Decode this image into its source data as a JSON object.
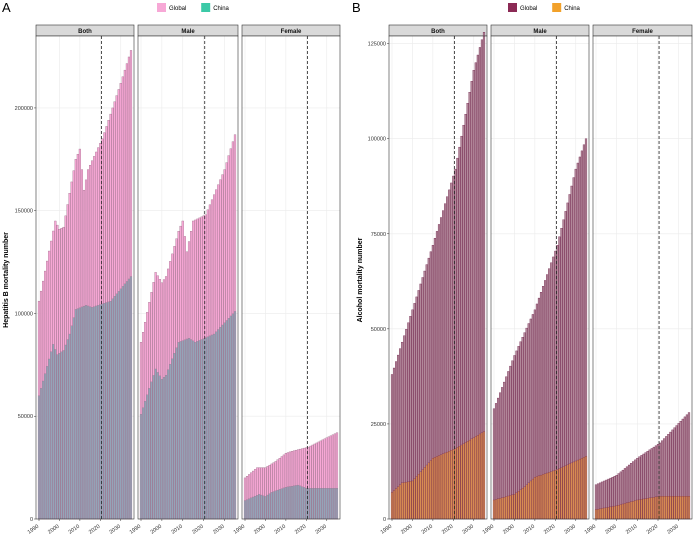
{
  "chart_data": [
    {
      "type": "bar",
      "panel_label": "A",
      "ylabel": "Hepatitis B mortality number",
      "xlabel": "",
      "ylim": [
        0,
        235000
      ],
      "yticks": [
        0,
        50000,
        100000,
        150000,
        200000
      ],
      "ytick_labels": [
        "0",
        "50000",
        "100000",
        "150000",
        "200000"
      ],
      "xticks": [
        1990,
        2000,
        2010,
        2020,
        2030
      ],
      "xtick_labels": [
        "1990",
        "2000",
        "2010",
        "2020",
        "2030"
      ],
      "x_range": [
        1990,
        2035
      ],
      "projection_start": 2021,
      "legend": {
        "position": "top",
        "entries": [
          {
            "label": "Global",
            "color": "#f7a8d6"
          },
          {
            "label": "China",
            "color": "#3cc9a7"
          }
        ]
      },
      "series_colors": {
        "Global": "#f7a8d6",
        "China": "#8fa3b6"
      },
      "bar_edge_color": "#9b6a86",
      "facets": [
        {
          "strip": "Both",
          "global_keypoints": [
            [
              1990,
              106000
            ],
            [
              1998,
              145000
            ],
            [
              2000,
              141000
            ],
            [
              2002,
              142000
            ],
            [
              2008,
              175000
            ],
            [
              2010,
              180000
            ],
            [
              2012,
              160000
            ],
            [
              2014,
              170000
            ],
            [
              2021,
              185000
            ],
            [
              2030,
              212000
            ],
            [
              2035,
              228000
            ]
          ],
          "china_keypoints": [
            [
              1990,
              60000
            ],
            [
              1997,
              85000
            ],
            [
              1999,
              80000
            ],
            [
              2002,
              82000
            ],
            [
              2005,
              90000
            ],
            [
              2008,
              102000
            ],
            [
              2013,
              104000
            ],
            [
              2016,
              103000
            ],
            [
              2025,
              106000
            ],
            [
              2035,
              118000
            ]
          ]
        },
        {
          "strip": "Male",
          "global_keypoints": [
            [
              1990,
              86000
            ],
            [
              1997,
              120000
            ],
            [
              2000,
              115000
            ],
            [
              2002,
              118000
            ],
            [
              2008,
              140000
            ],
            [
              2010,
              145000
            ],
            [
              2012,
              130000
            ],
            [
              2015,
              145000
            ],
            [
              2021,
              148000
            ],
            [
              2030,
              170000
            ],
            [
              2035,
              187000
            ]
          ],
          "china_keypoints": [
            [
              1990,
              51000
            ],
            [
              1997,
              73000
            ],
            [
              2000,
              68000
            ],
            [
              2002,
              70000
            ],
            [
              2005,
              78000
            ],
            [
              2008,
              86000
            ],
            [
              2013,
              88000
            ],
            [
              2016,
              86000
            ],
            [
              2025,
              90000
            ],
            [
              2035,
              101000
            ]
          ]
        },
        {
          "strip": "Female",
          "global_keypoints": [
            [
              1990,
              20000
            ],
            [
              1996,
              25000
            ],
            [
              2000,
              25000
            ],
            [
              2005,
              28000
            ],
            [
              2010,
              32000
            ],
            [
              2013,
              33000
            ],
            [
              2021,
              35000
            ],
            [
              2035,
              42000
            ]
          ],
          "china_keypoints": [
            [
              1990,
              9000
            ],
            [
              1997,
              12000
            ],
            [
              2000,
              11000
            ],
            [
              2003,
              13000
            ],
            [
              2010,
              15500
            ],
            [
              2016,
              16500
            ],
            [
              2020,
              15000
            ],
            [
              2035,
              15000
            ]
          ]
        }
      ]
    },
    {
      "type": "bar",
      "panel_label": "B",
      "ylabel": "Alcohol mortality number",
      "xlabel": "",
      "ylim": [
        0,
        127000
      ],
      "yticks": [
        0,
        25000,
        50000,
        75000,
        100000,
        125000
      ],
      "ytick_labels": [
        "0",
        "25000",
        "50000",
        "75000",
        "100000",
        "125000"
      ],
      "xticks": [
        1990,
        2000,
        2010,
        2020,
        2030
      ],
      "xtick_labels": [
        "1990",
        "2000",
        "2010",
        "2020",
        "2030"
      ],
      "x_range": [
        1990,
        2035
      ],
      "projection_start": 2021,
      "legend": {
        "position": "top",
        "entries": [
          {
            "label": "Global",
            "color": "#8b2a55"
          },
          {
            "label": "China",
            "color": "#f2a12a"
          }
        ]
      },
      "series_colors": {
        "Global": "#b2889a",
        "China": "#d98c4f"
      },
      "bar_edge_color": "#6b1c45",
      "facets": [
        {
          "strip": "Both",
          "global_keypoints": [
            [
              1990,
              38000
            ],
            [
              2000,
              55000
            ],
            [
              2010,
              72000
            ],
            [
              2021,
              92000
            ],
            [
              2030,
              118000
            ],
            [
              2035,
              128000
            ]
          ],
          "china_keypoints": [
            [
              1990,
              7000
            ],
            [
              1995,
              9500
            ],
            [
              2000,
              10000
            ],
            [
              2005,
              13000
            ],
            [
              2010,
              16000
            ],
            [
              2021,
              18500
            ],
            [
              2035,
              23000
            ]
          ]
        },
        {
          "strip": "Male",
          "global_keypoints": [
            [
              1990,
              29000
            ],
            [
              2000,
              43000
            ],
            [
              2010,
              55000
            ],
            [
              2021,
              72000
            ],
            [
              2030,
              92000
            ],
            [
              2035,
              100000
            ]
          ],
          "china_keypoints": [
            [
              1990,
              5000
            ],
            [
              2000,
              6500
            ],
            [
              2005,
              8500
            ],
            [
              2010,
              11000
            ],
            [
              2021,
              13000
            ],
            [
              2035,
              16500
            ]
          ]
        },
        {
          "strip": "Female",
          "global_keypoints": [
            [
              1990,
              9000
            ],
            [
              2000,
              11500
            ],
            [
              2010,
              16000
            ],
            [
              2021,
              20000
            ],
            [
              2035,
              28000
            ]
          ],
          "china_keypoints": [
            [
              1990,
              2500
            ],
            [
              2000,
              3500
            ],
            [
              2010,
              5000
            ],
            [
              2021,
              6000
            ],
            [
              2035,
              6000
            ]
          ]
        }
      ]
    }
  ]
}
